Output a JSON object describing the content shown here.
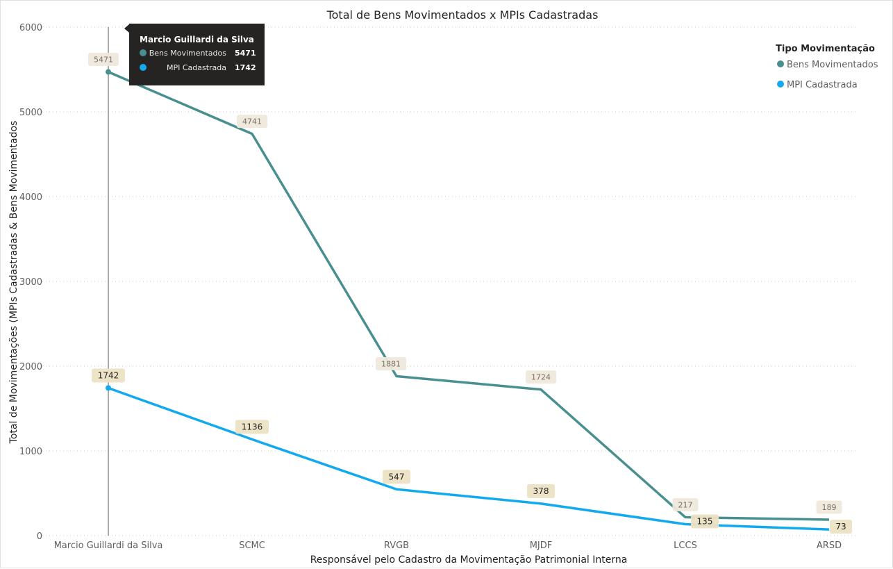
{
  "chart_data": {
    "type": "line",
    "title": "Total de Bens Movimentados x MPIs Cadastradas",
    "xlabel": "Responsável pelo Cadastro da Movimentação Patrimonial Interna",
    "ylabel": "Total de Movimentações (MPIs Cadastradas & Bens Movimentados",
    "categories": [
      "Marcio Guillardi da Silva",
      "SCMC",
      "RVGB",
      "MJDF",
      "LCCS",
      "ARSD"
    ],
    "ylim": [
      0,
      6000
    ],
    "yticks": [
      0,
      1000,
      2000,
      3000,
      4000,
      5000,
      6000
    ],
    "grid": true,
    "legend_title": "Tipo Movimentação",
    "legend_position": "top-right",
    "series": [
      {
        "name": "Bens Movimentados",
        "color": "#4a8f8f",
        "values": [
          5471,
          4741,
          1881,
          1724,
          217,
          189
        ]
      },
      {
        "name": "MPI Cadastrada",
        "color": "#12a9ee",
        "values": [
          1742,
          1136,
          547,
          378,
          135,
          73
        ]
      }
    ]
  },
  "tooltip": {
    "title": "Marcio Guillardi da Silva",
    "rows": [
      {
        "label": "Bens Movimentados",
        "value": "5471",
        "color": "#4a8f8f"
      },
      {
        "label": "MPI Cadastrada",
        "value": "1742",
        "color": "#12a9ee"
      }
    ]
  }
}
